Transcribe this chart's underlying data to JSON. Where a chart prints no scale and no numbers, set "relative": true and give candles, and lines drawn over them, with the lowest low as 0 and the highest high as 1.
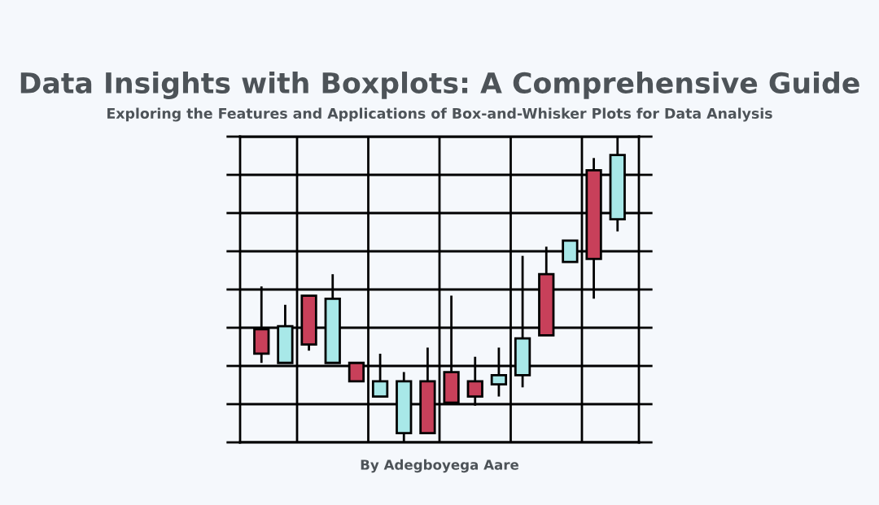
{
  "chart_data": {
    "type": "candlestick",
    "title": "Data Insights with Boxplots: A Comprehensive Guide",
    "subtitle": "Exploring the Features and Applications of Box-and-Whisker Plots for Data Analysis",
    "annotations": [
      "By Adegboyega Aare"
    ],
    "relative": true,
    "grid": true,
    "tick_labels": false,
    "categories": [
      null,
      null,
      null,
      null,
      null,
      null,
      null,
      null,
      null,
      null,
      null,
      null,
      null,
      null,
      null,
      null
    ],
    "ohlc": [
      [
        0.37,
        0.51,
        0.26,
        0.29
      ],
      [
        0.26,
        0.45,
        0.26,
        0.38
      ],
      [
        0.48,
        0.48,
        0.3,
        0.32
      ],
      [
        0.26,
        0.55,
        0.26,
        0.47
      ],
      [
        0.26,
        0.26,
        0.2,
        0.2
      ],
      [
        0.15,
        0.29,
        0.15,
        0.2
      ],
      [
        0.03,
        0.23,
        0.0,
        0.2
      ],
      [
        0.2,
        0.31,
        0.03,
        0.03
      ],
      [
        0.23,
        0.48,
        0.13,
        0.13
      ],
      [
        0.2,
        0.28,
        0.12,
        0.15
      ],
      [
        0.19,
        0.31,
        0.15,
        0.22
      ],
      [
        0.22,
        0.61,
        0.18,
        0.34
      ],
      [
        0.55,
        0.64,
        0.35,
        0.35
      ],
      [
        0.59,
        0.66,
        0.59,
        0.66
      ],
      [
        0.89,
        0.93,
        0.47,
        0.6
      ],
      [
        0.73,
        1.0,
        0.69,
        0.94
      ]
    ],
    "colors": [
      "#c8405a",
      "#a8e8e8",
      "#c8405a",
      "#a8e8e8",
      "#c8405a",
      "#a8e8e8",
      "#a8e8e8",
      "#c8405a",
      "#c8405a",
      "#c8405a",
      "#a8e8e8",
      "#a8e8e8",
      "#c8405a",
      "#a8e8e8",
      "#c8405a",
      "#a8e8e8"
    ]
  }
}
